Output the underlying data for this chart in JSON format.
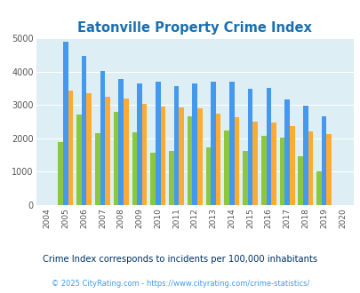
{
  "title": "Eatonville Property Crime Index",
  "years": [
    2004,
    2005,
    2006,
    2007,
    2008,
    2009,
    2010,
    2011,
    2012,
    2013,
    2014,
    2015,
    2016,
    2017,
    2018,
    2019,
    2020
  ],
  "eatonville": [
    0,
    1900,
    2720,
    2150,
    2800,
    2175,
    1560,
    1625,
    2650,
    1720,
    2225,
    1625,
    2075,
    2025,
    1450,
    1010,
    0
  ],
  "washington": [
    0,
    4900,
    4475,
    4025,
    3775,
    3650,
    3700,
    3575,
    3650,
    3700,
    3700,
    3475,
    3500,
    3175,
    2975,
    2650,
    0
  ],
  "national": [
    0,
    3440,
    3340,
    3240,
    3200,
    3040,
    2950,
    2920,
    2900,
    2730,
    2620,
    2500,
    2470,
    2360,
    2200,
    2130,
    0
  ],
  "eatonville_color": "#8dc63f",
  "washington_color": "#4499ee",
  "national_color": "#ffaa33",
  "bg_color": "#ddeef5",
  "title_color": "#1a6faf",
  "subtitle_color": "#003366",
  "footer_color": "#4499ee",
  "legend_label_color": "#1a6faf",
  "ylim": [
    0,
    5000
  ],
  "yticks": [
    0,
    1000,
    2000,
    3000,
    4000,
    5000
  ],
  "subtitle": "Crime Index corresponds to incidents per 100,000 inhabitants",
  "footer": "© 2025 CityRating.com - https://www.cityrating.com/crime-statistics/",
  "bar_width": 0.27
}
